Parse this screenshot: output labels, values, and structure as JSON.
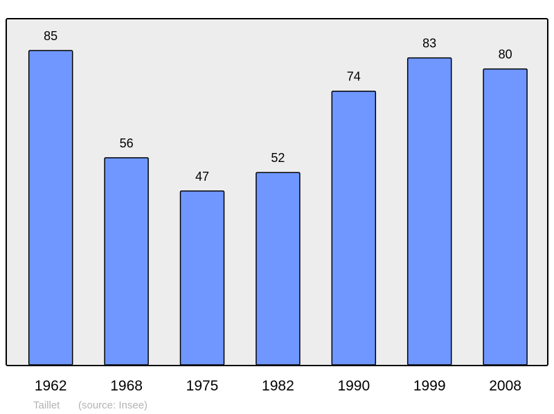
{
  "chart_data": {
    "type": "bar",
    "title": "",
    "xlabel": "",
    "ylabel": "",
    "categories": [
      "1962",
      "1968",
      "1975",
      "1982",
      "1990",
      "1999",
      "2008"
    ],
    "values": [
      85,
      56,
      47,
      52,
      74,
      83,
      80
    ],
    "data_labels": [
      "85",
      "56",
      "47",
      "52",
      "74",
      "83",
      "80"
    ],
    "ylim": [
      0,
      93.6
    ],
    "grid": false,
    "legend": "none",
    "colors": {
      "bar": "#6f97ff",
      "plot_background": "#ededed",
      "border": "#000000"
    }
  },
  "footer": {
    "author": "Taillet",
    "source": "(source: Insee)"
  }
}
